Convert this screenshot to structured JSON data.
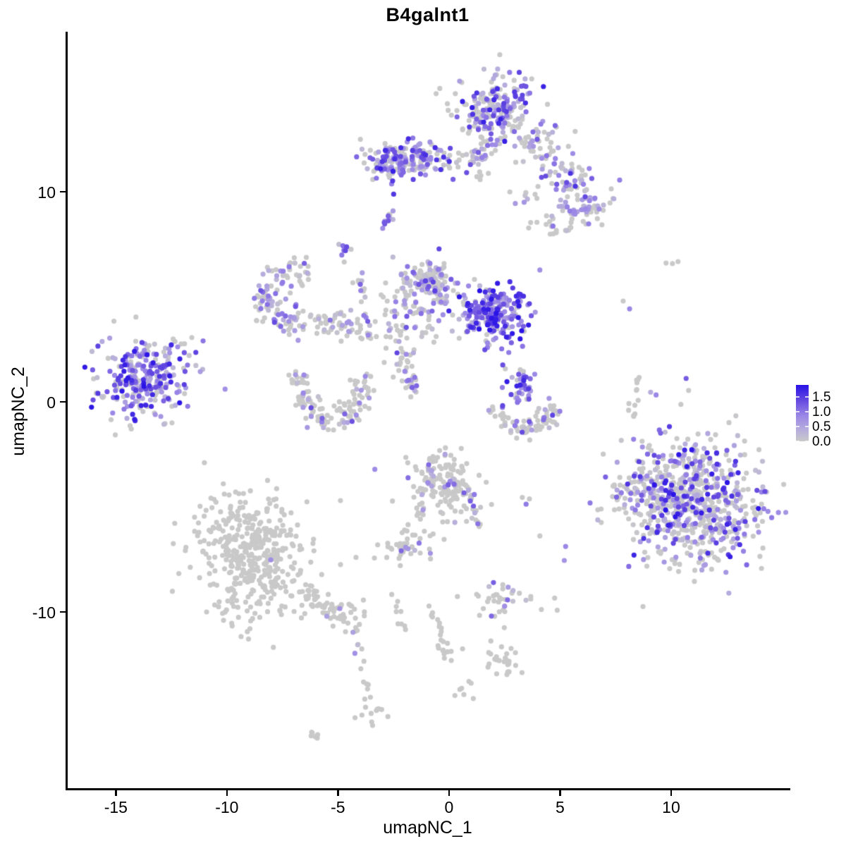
{
  "axes": {
    "x": {
      "label": "umapNC_1",
      "range": [
        -17.2,
        15.27
      ],
      "tick_values": [
        -15,
        -10,
        -5,
        0,
        5,
        10
      ],
      "tick_labels": [
        "-15",
        "-10",
        "-5",
        "0",
        "5",
        "10"
      ]
    },
    "y": {
      "label": "umapNC_2",
      "range": [
        -18.39,
        17.62
      ],
      "tick_values": [
        10,
        0,
        -10
      ],
      "tick_labels": [
        "10",
        "0",
        "-10"
      ]
    }
  },
  "legend": {
    "tick_values": [
      1.5,
      1.0,
      0.5,
      0.0
    ],
    "tick_labels": [
      "1.5",
      "1.0",
      "0.5",
      "0.0"
    ]
  },
  "style": {
    "point_radius": 3.6,
    "axis_color": "#000000",
    "background": "#FFFFFF",
    "grey": "#C9C9C9",
    "gradient": [
      {
        "t": 0.0,
        "c": "#C9C9C9"
      },
      {
        "t": 0.2,
        "c": "#B7AEDC"
      },
      {
        "t": 0.45,
        "c": "#9B87E6"
      },
      {
        "t": 0.7,
        "c": "#6A4FE0"
      },
      {
        "t": 1.0,
        "c": "#2912E6"
      }
    ]
  },
  "chart_data": {
    "type": "scatter",
    "title": "B4galnt1",
    "xlabel": "umapNC_1",
    "ylabel": "umapNC_2",
    "xlim": [
      -17.2,
      15.27
    ],
    "ylim": [
      -18.39,
      17.62
    ],
    "grid": false,
    "legend_position": "right",
    "color_scale": {
      "from": "#C9C9C9",
      "to": "#2912E6",
      "domain": [
        0,
        1.9
      ],
      "legend_ticks": [
        0.0,
        0.5,
        1.0,
        1.5
      ]
    },
    "seed": 20240707,
    "clusters": [
      {
        "name": "top-main",
        "shape": "gauss",
        "cx": 2.0,
        "cy": 13.9,
        "sx": 0.85,
        "sy": 0.88,
        "rot": 0,
        "n": 210,
        "p0": 0.42,
        "vmax": 1.8,
        "bias": 1.2
      },
      {
        "name": "top-neck",
        "shape": "trail",
        "x1": 1.7,
        "y1": 12.4,
        "x2": 1.1,
        "y2": 10.9,
        "jitter": 0.3,
        "n": 35,
        "p0": 0.5,
        "vmax": 1.5,
        "bias": 1.2
      },
      {
        "name": "band-upper-left",
        "shape": "gauss",
        "cx": -1.6,
        "cy": 11.5,
        "sx": 1.0,
        "sy": 0.44,
        "rot": -4,
        "n": 150,
        "p0": 0.3,
        "vmax": 1.7,
        "bias": 1.1
      },
      {
        "name": "band-left-knot",
        "shape": "gauss",
        "cx": -2.85,
        "cy": 11.4,
        "sx": 0.5,
        "sy": 0.45,
        "rot": 0,
        "n": 45,
        "p0": 0.25,
        "vmax": 1.8,
        "bias": 1.0
      },
      {
        "name": "arm-right",
        "shape": "trail",
        "x1": 3.3,
        "y1": 13.0,
        "x2": 6.9,
        "y2": 9.3,
        "jitter": 0.55,
        "n": 120,
        "p0": 0.5,
        "vmax": 1.6,
        "bias": 1.2
      },
      {
        "name": "arm-patch",
        "shape": "gauss",
        "cx": 6.2,
        "cy": 9.4,
        "sx": 0.6,
        "sy": 0.45,
        "rot": 0,
        "n": 40,
        "p0": 0.25,
        "vmax": 1.0,
        "bias": 1.0
      },
      {
        "name": "arm-wisp",
        "shape": "gauss",
        "cx": 4.9,
        "cy": 8.5,
        "sx": 0.55,
        "sy": 0.35,
        "rot": 0,
        "n": 22,
        "p0": 0.7,
        "vmax": 1.2,
        "bias": 1.2
      },
      {
        "name": "arm-sparse",
        "shape": "gauss",
        "cx": 3.3,
        "cy": 9.7,
        "sx": 0.3,
        "sy": 0.3,
        "rot": 0,
        "n": 8,
        "p0": 0.55,
        "vmax": 1.2,
        "bias": 1.2
      },
      {
        "name": "streak-small",
        "shape": "trail",
        "x1": -3.1,
        "y1": 8.3,
        "x2": -2.5,
        "y2": 9.0,
        "jitter": 0.07,
        "n": 12,
        "p0": 0.15,
        "vmax": 1.3,
        "bias": 1.2
      },
      {
        "name": "tiny-dots",
        "shape": "gauss",
        "cx": -4.7,
        "cy": 7.1,
        "sx": 0.18,
        "sy": 0.3,
        "rot": 0,
        "n": 9,
        "p0": 0.3,
        "vmax": 1.4,
        "bias": 1.2
      },
      {
        "name": "stem",
        "shape": "trail",
        "x1": -4.1,
        "y1": 6.1,
        "x2": -3.6,
        "y2": 3.7,
        "jitter": 0.14,
        "n": 16,
        "p0": 0.4,
        "vmax": 1.5,
        "bias": 1.2
      },
      {
        "name": "hook-ring",
        "shape": "arc",
        "cx": -7.1,
        "cy": 5.0,
        "r": 1.2,
        "a0": 40,
        "a1": 320,
        "jitter": 0.35,
        "n": 115,
        "p0": 0.45,
        "vmax": 1.4,
        "bias": 1.2
      },
      {
        "name": "bridge-arc",
        "shape": "trail",
        "x1": -6.3,
        "y1": 3.9,
        "x2": -3.5,
        "y2": 3.4,
        "jitter": 0.35,
        "n": 55,
        "p0": 0.8,
        "vmax": 1.2,
        "bias": 1.2
      },
      {
        "name": "center-upper",
        "shape": "gauss",
        "cx": -0.9,
        "cy": 5.6,
        "sx": 0.75,
        "sy": 0.65,
        "rot": -20,
        "n": 140,
        "p0": 0.45,
        "vmax": 1.6,
        "bias": 1.2
      },
      {
        "name": "center-lower",
        "shape": "gauss",
        "cx": -1.7,
        "cy": 3.9,
        "sx": 0.75,
        "sy": 0.7,
        "rot": 0,
        "n": 55,
        "p0": 0.65,
        "vmax": 1.3,
        "bias": 1.2
      },
      {
        "name": "dense-right",
        "shape": "gauss",
        "cx": 2.0,
        "cy": 4.2,
        "sx": 0.7,
        "sy": 0.65,
        "rot": -15,
        "n": 230,
        "p0": 0.15,
        "vmax": 1.9,
        "bias": 0.8
      },
      {
        "name": "strand-down",
        "shape": "trail",
        "x1": -2.3,
        "y1": 3.0,
        "x2": -1.5,
        "y2": 0.4,
        "jitter": 0.18,
        "n": 26,
        "p0": 0.6,
        "vmax": 1.4,
        "bias": 1.2
      },
      {
        "name": "strand-purple",
        "shape": "trail",
        "x1": -1.85,
        "y1": 1.1,
        "x2": -1.55,
        "y2": 0.55,
        "jitter": 0.06,
        "n": 7,
        "p0": 0.15,
        "vmax": 1.4,
        "bias": 1.0
      },
      {
        "name": "left-main",
        "shape": "gauss",
        "cx": -13.8,
        "cy": 1.2,
        "sx": 1.0,
        "sy": 0.95,
        "rot": 10,
        "n": 250,
        "p0": 0.2,
        "vmax": 1.9,
        "bias": 0.9
      },
      {
        "name": "left-fringe",
        "shape": "gauss",
        "cx": -12.4,
        "cy": 1.7,
        "sx": 0.8,
        "sy": 0.7,
        "rot": 0,
        "n": 22,
        "p0": 0.45,
        "vmax": 1.5,
        "bias": 1.2
      },
      {
        "name": "c-arc",
        "shape": "arc",
        "cx": -5.3,
        "cy": 0.6,
        "r": 1.5,
        "a0": 150,
        "a1": 390,
        "jitter": 0.3,
        "n": 130,
        "p0": 0.72,
        "vmax": 1.4,
        "bias": 1.2
      },
      {
        "name": "rightmid-knot",
        "shape": "gauss",
        "cx": 3.2,
        "cy": 0.75,
        "sx": 0.45,
        "sy": 0.5,
        "rot": 0,
        "n": 42,
        "p0": 0.2,
        "vmax": 1.8,
        "bias": 0.9
      },
      {
        "name": "rightmid-smile",
        "shape": "arc",
        "cx": 3.4,
        "cy": 0.3,
        "r": 1.55,
        "a0": 200,
        "a1": 340,
        "jitter": 0.25,
        "n": 75,
        "p0": 0.6,
        "vmax": 1.5,
        "bias": 1.2
      },
      {
        "name": "right-trail-grey",
        "shape": "trail",
        "x1": 8.5,
        "y1": 1.1,
        "x2": 8.2,
        "y2": -0.8,
        "jitter": 0.12,
        "n": 13,
        "p0": 0.92,
        "vmax": 0.8,
        "bias": 1.2
      },
      {
        "name": "bottomright-main",
        "shape": "gauss",
        "cx": 10.9,
        "cy": -4.7,
        "sx": 1.6,
        "sy": 1.5,
        "rot": -25,
        "n": 680,
        "p0": 0.46,
        "vmax": 1.9,
        "bias": 1.4
      },
      {
        "name": "bottomright-edge",
        "shape": "gauss",
        "cx": 8.6,
        "cy": -4.4,
        "sx": 0.55,
        "sy": 1.05,
        "rot": 0,
        "n": 45,
        "p0": 0.55,
        "vmax": 1.5,
        "bias": 1.2
      },
      {
        "name": "bottomleft-main",
        "shape": "gauss",
        "cx": -8.9,
        "cy": -7.3,
        "sx": 1.15,
        "sy": 1.5,
        "rot": 12,
        "n": 430,
        "p0": 0.988,
        "vmax": 0.9,
        "bias": 1.0
      },
      {
        "name": "bottomleft-tail",
        "shape": "trail",
        "x1": -6.6,
        "y1": -9.0,
        "x2": -4.2,
        "y2": -10.6,
        "jitter": 0.3,
        "n": 65,
        "p0": 0.97,
        "vmax": 0.9,
        "bias": 1.0
      },
      {
        "name": "bottomleft-tail2",
        "shape": "trail",
        "x1": -4.15,
        "y1": -11.0,
        "x2": -3.6,
        "y2": -14.3,
        "jitter": 0.12,
        "n": 13,
        "p0": 0.92,
        "vmax": 0.8,
        "bias": 1.0
      },
      {
        "name": "tail-end-blob",
        "shape": "gauss",
        "cx": -3.5,
        "cy": -14.8,
        "sx": 0.35,
        "sy": 0.3,
        "rot": 0,
        "n": 12,
        "p0": 1.0,
        "vmax": 0,
        "bias": 1.0
      },
      {
        "name": "bl-streak",
        "shape": "trail",
        "x1": -6.4,
        "y1": -15.7,
        "x2": -5.85,
        "y2": -16.0,
        "jitter": 0.08,
        "n": 7,
        "p0": 1.0,
        "vmax": 0,
        "bias": 1.0
      },
      {
        "name": "centerbottom",
        "shape": "gauss",
        "cx": -0.2,
        "cy": -3.9,
        "sx": 0.7,
        "sy": 0.8,
        "rot": 35,
        "n": 150,
        "p0": 0.78,
        "vmax": 1.3,
        "bias": 1.0
      },
      {
        "name": "cb-tail-purple",
        "shape": "trail",
        "x1": 1.0,
        "y1": -4.6,
        "x2": 1.3,
        "y2": -5.9,
        "jitter": 0.09,
        "n": 14,
        "p0": 0.45,
        "vmax": 1.3,
        "bias": 1.0
      },
      {
        "name": "cb-trail-grey",
        "shape": "trail",
        "x1": -1.15,
        "y1": -4.8,
        "x2": -1.5,
        "y2": -5.9,
        "jitter": 0.1,
        "n": 10,
        "p0": 1.0,
        "vmax": 0,
        "bias": 1.0
      },
      {
        "name": "small-left",
        "shape": "gauss",
        "cx": -2.0,
        "cy": -7.0,
        "sx": 0.8,
        "sy": 0.45,
        "rot": 0,
        "n": 44,
        "p0": 0.9,
        "vmax": 1.2,
        "bias": 1.0
      },
      {
        "name": "small-right",
        "shape": "gauss",
        "cx": 2.4,
        "cy": -9.5,
        "sx": 0.85,
        "sy": 0.45,
        "rot": 0,
        "n": 40,
        "p0": 0.65,
        "vmax": 1.2,
        "bias": 1.2
      },
      {
        "name": "mid-trail-grey",
        "shape": "trail",
        "x1": -2.4,
        "y1": -9.2,
        "x2": -2.05,
        "y2": -11.1,
        "jitter": 0.1,
        "n": 9,
        "p0": 1.0,
        "vmax": 0,
        "bias": 1.0
      },
      {
        "name": "right-lower-trail",
        "shape": "trail",
        "x1": -0.8,
        "y1": -9.7,
        "x2": -0.1,
        "y2": -11.7,
        "jitter": 0.12,
        "n": 13,
        "p0": 1.0,
        "vmax": 0,
        "bias": 1.0
      },
      {
        "name": "rl-blob",
        "shape": "gauss",
        "cx": -0.1,
        "cy": -12.0,
        "sx": 0.3,
        "sy": 0.28,
        "rot": 0,
        "n": 10,
        "p0": 1.0,
        "vmax": 0,
        "bias": 1.0
      },
      {
        "name": "round-cluster",
        "shape": "gauss",
        "cx": 2.4,
        "cy": -12.4,
        "sx": 0.5,
        "sy": 0.38,
        "rot": -30,
        "n": 26,
        "p0": 1.0,
        "vmax": 0,
        "bias": 1.0
      },
      {
        "name": "small-blob",
        "shape": "gauss",
        "cx": 0.7,
        "cy": -13.8,
        "sx": 0.2,
        "sy": 0.2,
        "rot": 0,
        "n": 7,
        "p0": 1.0,
        "vmax": 0,
        "bias": 1.0
      },
      {
        "name": "gap-sparse",
        "shape": "gauss",
        "cx": -2.6,
        "cy": 2.2,
        "sx": 0.6,
        "sy": 0.9,
        "rot": 0,
        "n": 10,
        "p0": 0.75,
        "vmax": 1.2,
        "bias": 1.2
      }
    ],
    "singles": [
      [
        8.13,
        4.43,
        0.85
      ],
      [
        7.84,
        4.8,
        0
      ],
      [
        9.77,
        6.61,
        0
      ],
      [
        10.06,
        6.58,
        0
      ],
      [
        10.31,
        6.68,
        0
      ],
      [
        8.31,
        -1.78,
        0.9
      ],
      [
        2.69,
        2.35,
        0.95
      ],
      [
        4.09,
        6.28,
        0.75
      ],
      [
        -0.84,
        -7.21,
        0.7
      ],
      [
        4.09,
        -6.38,
        0
      ],
      [
        5.25,
        -6.88,
        0.85
      ],
      [
        5.19,
        -7.55,
        0.7
      ],
      [
        -11.2,
        1.44,
        0.6
      ],
      [
        3.47,
        -4.87,
        0.95
      ],
      [
        3.3,
        -4.55,
        0
      ],
      [
        3.62,
        -4.62,
        0
      ]
    ]
  }
}
